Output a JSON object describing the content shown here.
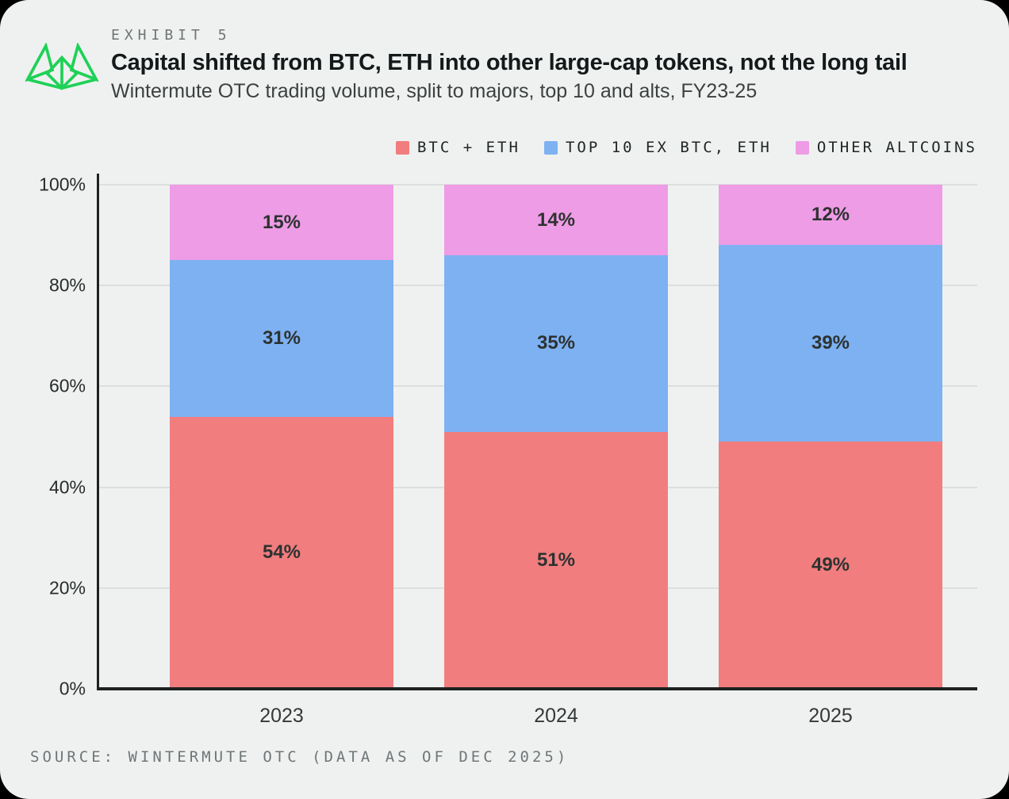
{
  "card": {
    "exhibit_label": "EXHIBIT 5",
    "title": "Capital shifted from BTC, ETH into other large-cap tokens, not the long tail",
    "subtitle": "Wintermute OTC trading volume, split to majors, top 10 and alts, FY23-25",
    "source": "SOURCE: WINTERMUTE OTC (DATA AS OF DEC 2025)"
  },
  "logo": {
    "name": "wintermute-logo",
    "color": "#1ed157"
  },
  "colors": {
    "background": "#eff1f0",
    "axis": "#1d2221",
    "gridline": "#dddfde",
    "label_text": "#2d3231"
  },
  "chart_data": {
    "type": "bar",
    "stacked": true,
    "title": "Capital shifted from BTC, ETH into other large-cap tokens, not the long tail",
    "subtitle": "Wintermute OTC trading volume, split to majors, top 10 and alts, FY23-25",
    "categories": [
      "2023",
      "2024",
      "2025"
    ],
    "series": [
      {
        "name": "BTC + ETH",
        "color": "#f17d7e",
        "values": [
          54,
          51,
          49
        ]
      },
      {
        "name": "TOP 10 EX BTC, ETH",
        "color": "#7db1f2",
        "values": [
          31,
          35,
          39
        ]
      },
      {
        "name": "OTHER ALTCOINS",
        "color": "#ee9ce5",
        "values": [
          15,
          14,
          12
        ]
      }
    ],
    "value_suffix": "%",
    "ylim": [
      0,
      100
    ],
    "y_ticks": [
      0,
      20,
      40,
      60,
      80,
      100
    ],
    "y_tick_suffix": "%",
    "grid": true,
    "legend_position": "top-right",
    "xlabel": "",
    "ylabel": ""
  }
}
